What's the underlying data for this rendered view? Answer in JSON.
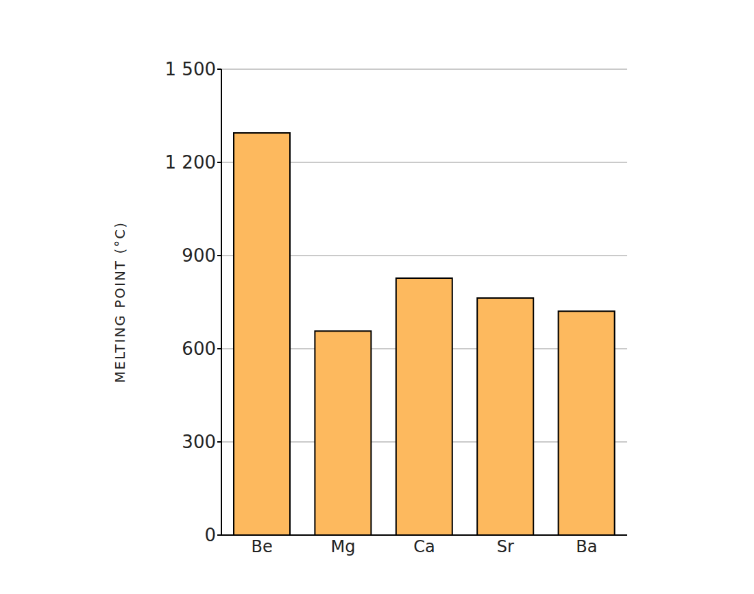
{
  "chart_data": {
    "type": "bar",
    "y_label": "MELTING POINT (°C)",
    "categories": [
      "Be",
      "Mg",
      "Ca",
      "Sr",
      "Ba"
    ],
    "values": [
      1295,
      657,
      827,
      763,
      721
    ],
    "color": "#fdb95e",
    "ylim": [
      0,
      1500
    ],
    "yticks": [
      0,
      300,
      600,
      900,
      {
        "value": 1200,
        "label": "1 200"
      },
      {
        "value": 1500,
        "label": "1 500"
      }
    ],
    "grid": true
  }
}
